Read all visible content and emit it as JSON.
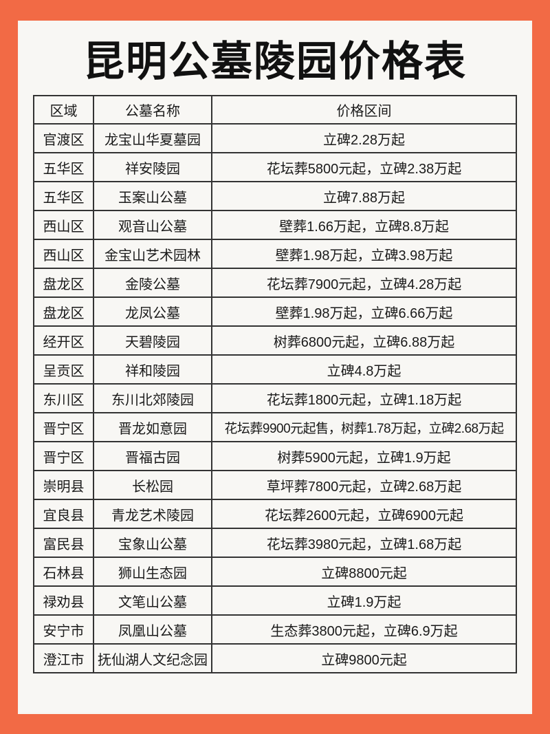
{
  "title": "昆明公墓陵园价格表",
  "colors": {
    "border": "#f26a45",
    "background": "#f8f7f4",
    "text": "#111111"
  },
  "table": {
    "headers": [
      "区域",
      "公墓名称",
      "价格区间"
    ],
    "rows": [
      [
        "官渡区",
        "龙宝山华夏墓园",
        "立碑2.28万起"
      ],
      [
        "五华区",
        "祥安陵园",
        "花坛葬5800元起，立碑2.38万起"
      ],
      [
        "五华区",
        "玉案山公墓",
        "立碑7.88万起"
      ],
      [
        "西山区",
        "观音山公墓",
        "壁葬1.66万起，立碑8.8万起"
      ],
      [
        "西山区",
        "金宝山艺术园林",
        "壁葬1.98万起，立碑3.98万起"
      ],
      [
        "盘龙区",
        "金陵公墓",
        "花坛葬7900元起，立碑4.28万起"
      ],
      [
        "盘龙区",
        "龙凤公墓",
        "壁葬1.98万起，立碑6.66万起"
      ],
      [
        "经开区",
        "天碧陵园",
        "树葬6800元起，立碑6.88万起"
      ],
      [
        "呈贡区",
        "祥和陵园",
        "立碑4.8万起"
      ],
      [
        "东川区",
        "东川北郊陵园",
        "花坛葬1800元起，立碑1.18万起"
      ],
      [
        "晋宁区",
        "晋龙如意园",
        "花坛葬9900元起售，树葬1.78万起，立碑2.68万起"
      ],
      [
        "晋宁区",
        "晋福古园",
        "树葬5900元起，立碑1.9万起"
      ],
      [
        "崇明县",
        "长松园",
        "草坪葬7800元起，立碑2.68万起"
      ],
      [
        "宜良县",
        "青龙艺术陵园",
        "花坛葬2600元起，立碑6900元起"
      ],
      [
        "富民县",
        "宝象山公墓",
        "花坛葬3980元起，立碑1.68万起"
      ],
      [
        "石林县",
        "狮山生态园",
        "立碑8800元起"
      ],
      [
        "禄劝县",
        "文笔山公墓",
        "立碑1.9万起"
      ],
      [
        "安宁市",
        "凤凰山公墓",
        "生态葬3800元起，立碑6.9万起"
      ],
      [
        "澄江市",
        "抚仙湖人文纪念园",
        "立碑9800元起"
      ]
    ]
  }
}
